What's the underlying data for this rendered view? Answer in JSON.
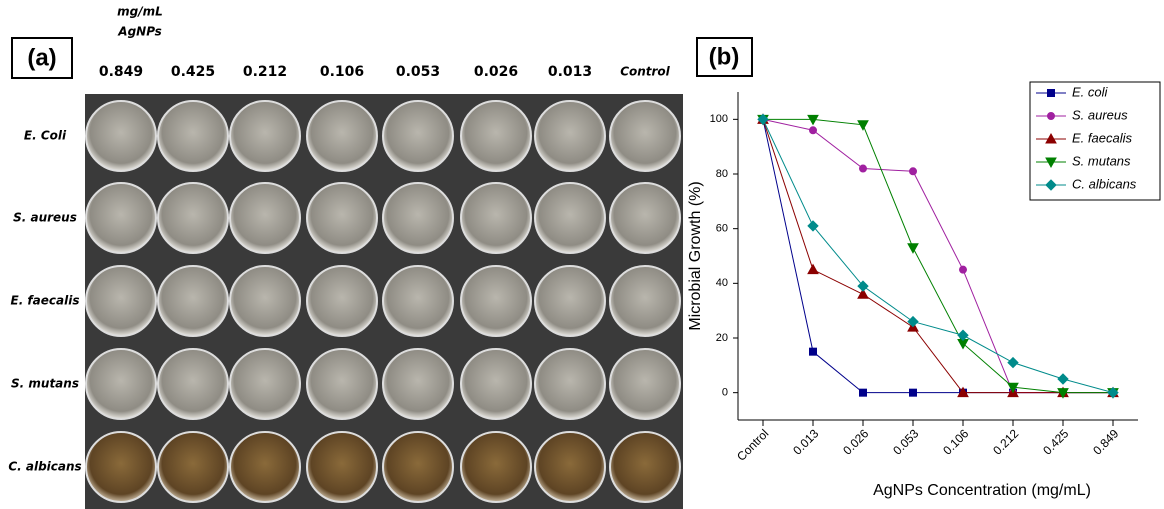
{
  "panel_a": {
    "label": "(a)",
    "unit_line1": "mg/mL",
    "unit_line2": "AgNPs",
    "columns": [
      "0.849",
      "0.425",
      "0.212",
      "0.106",
      "0.053",
      "0.026",
      "0.013",
      "Control"
    ],
    "rows": [
      "E. Coli",
      "S. aureus",
      "E. faecalis",
      "S. mutans",
      "C. albicans"
    ]
  },
  "chart_data": {
    "type": "line",
    "panel_label": "(b)",
    "x_label": "AgNPs Concentration (mg/mL)",
    "y_label": "Microbial Growth (%)",
    "categories": [
      "Control",
      "0.013",
      "0.026",
      "0.053",
      "0.106",
      "0.212",
      "0.425",
      "0.849"
    ],
    "ylim": [
      -10,
      110
    ],
    "yticks": [
      0,
      20,
      40,
      60,
      80,
      100
    ],
    "grid": false,
    "legend": "upper right",
    "series": [
      {
        "name": "E. coli",
        "color": "#00008b",
        "marker": "square",
        "values": [
          100,
          15,
          0,
          0,
          0,
          0,
          0,
          0
        ]
      },
      {
        "name": "S. aureus",
        "color": "#a020a0",
        "marker": "circle",
        "values": [
          100,
          96,
          82,
          81,
          45,
          0,
          0,
          0
        ]
      },
      {
        "name": "E. faecalis",
        "color": "#8b0000",
        "marker": "triangle-up",
        "values": [
          100,
          45,
          36,
          24,
          0,
          0,
          0,
          0
        ]
      },
      {
        "name": "S. mutans",
        "color": "#008000",
        "marker": "triangle-down",
        "values": [
          100,
          100,
          98,
          53,
          18,
          2,
          0,
          0
        ]
      },
      {
        "name": "C. albicans",
        "color": "#008b8b",
        "marker": "diamond",
        "values": [
          100,
          61,
          39,
          26,
          21,
          11,
          5,
          0
        ]
      }
    ]
  }
}
